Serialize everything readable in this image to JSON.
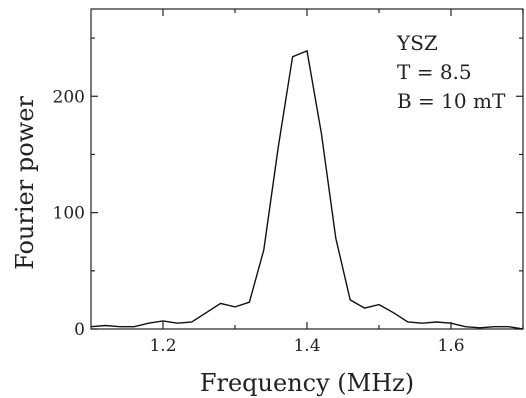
{
  "chart_data": {
    "type": "line",
    "title": "",
    "xlabel": "Frequency (MHz)",
    "ylabel": "Fourier power",
    "xlim": [
      1.1,
      1.7
    ],
    "ylim": [
      0,
      275
    ],
    "x_ticks": [
      1.2,
      1.4,
      1.6
    ],
    "x_tick_labels": [
      "1.2",
      "1.4",
      "1.6"
    ],
    "x_minor_ticks": [
      1.3,
      1.5,
      1.7
    ],
    "y_ticks": [
      0,
      100,
      200
    ],
    "y_tick_labels": [
      "0",
      "100",
      "200"
    ],
    "y_minor_ticks": [
      50,
      150,
      250
    ],
    "grid": false,
    "legend": "none",
    "annotations": [
      "YSZ",
      "T = 8.5",
      "B = 10 mT"
    ],
    "series": [
      {
        "color": "#111111",
        "x": [
          1.1,
          1.12,
          1.14,
          1.16,
          1.18,
          1.2,
          1.22,
          1.24,
          1.26,
          1.28,
          1.3,
          1.32,
          1.34,
          1.36,
          1.38,
          1.4,
          1.42,
          1.44,
          1.46,
          1.48,
          1.5,
          1.52,
          1.54,
          1.56,
          1.58,
          1.6,
          1.62,
          1.64,
          1.66,
          1.68,
          1.7
        ],
        "y": [
          2,
          3,
          2,
          2,
          5,
          7,
          5,
          6,
          14,
          22,
          19,
          23,
          68,
          156,
          234,
          239,
          168,
          78,
          25,
          18,
          21,
          14,
          6,
          5,
          6,
          5,
          2,
          1,
          2,
          2,
          0
        ]
      }
    ]
  }
}
